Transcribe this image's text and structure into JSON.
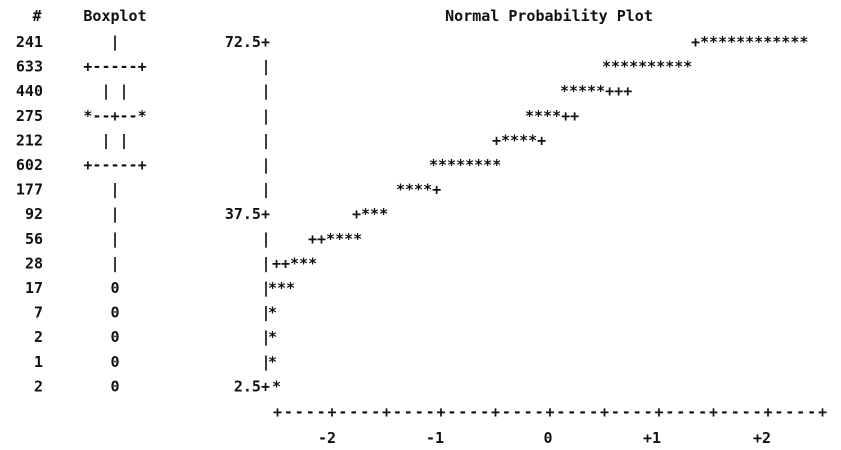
{
  "chart_data": {
    "type": "table",
    "columns": {
      "count_header": "#",
      "boxplot_header": "Boxplot",
      "plot_title": "Normal Probability Plot"
    },
    "rows": [
      {
        "count": "241",
        "boxplot": "|",
        "plot": "+************",
        "y_label": "72.5+"
      },
      {
        "count": "633",
        "boxplot": "+-----+",
        "plot": "**********",
        "y_label": "|"
      },
      {
        "count": "440",
        "boxplot": "|     |",
        "plot": "*****+++",
        "y_label": "|"
      },
      {
        "count": "275",
        "boxplot": "*--+--*",
        "plot": "****++",
        "y_label": "|"
      },
      {
        "count": "212",
        "boxplot": "|     |",
        "plot": "+****+",
        "y_label": "|"
      },
      {
        "count": "602",
        "boxplot": "+-----+",
        "plot": "********",
        "y_label": "|"
      },
      {
        "count": "177",
        "boxplot": "|",
        "plot": "****+",
        "y_label": "|"
      },
      {
        "count": "92",
        "boxplot": "|",
        "plot": "+***",
        "y_label": "37.5+"
      },
      {
        "count": "56",
        "boxplot": "|",
        "plot": "++****",
        "y_label": "|"
      },
      {
        "count": "28",
        "boxplot": "|",
        "plot": "++***",
        "y_label": "|"
      },
      {
        "count": "17",
        "boxplot": "0",
        "plot": "***",
        "y_label": "|"
      },
      {
        "count": "7",
        "boxplot": "0",
        "plot": "*",
        "y_label": "|"
      },
      {
        "count": "2",
        "boxplot": "0",
        "plot": "*",
        "y_label": "|"
      },
      {
        "count": "1",
        "boxplot": "0",
        "plot": "*",
        "y_label": "|"
      },
      {
        "count": "2",
        "boxplot": "0",
        "plot": "*",
        "y_label": "2.5+"
      }
    ],
    "x_axis_line": "+----+----+----+----+----+----+----+----+----+----+",
    "x_tick_labels": [
      "-2",
      "-1",
      "0",
      "+1",
      "+2"
    ],
    "y_tick_values": [
      72.5,
      37.5,
      2.5
    ]
  }
}
